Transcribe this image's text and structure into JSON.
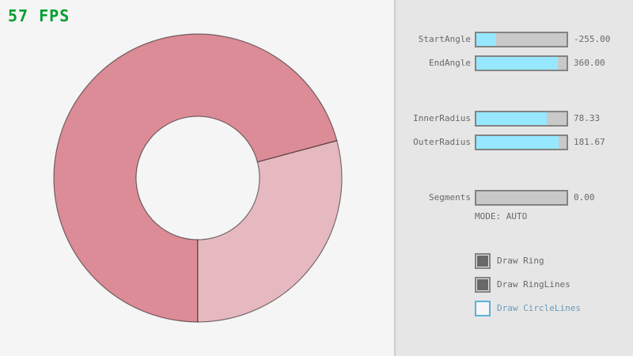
{
  "app": {
    "fps_label": "57 FPS"
  },
  "ring": {
    "start_angle": -255.0,
    "end_angle": 360.0,
    "inner_radius": 78.33,
    "outer_radius": 181.67,
    "segments": 0.0,
    "sector_dark_deg": [
      90,
      345
    ],
    "sector_light_deg": [
      345,
      450
    ]
  },
  "panel": {
    "sliders": [
      {
        "label": "StartAngle",
        "value": "-255.00",
        "fraction": 0.215
      },
      {
        "label": "EndAngle",
        "value": "360.00",
        "fraction": 0.9
      },
      {
        "label": "InnerRadius",
        "value": "78.33",
        "fraction": 0.783
      },
      {
        "label": "OuterRadius",
        "value": "181.67",
        "fraction": 0.908
      },
      {
        "label": "Segments",
        "value": "0.00",
        "fraction": 0.0
      }
    ],
    "mode_text": "MODE: AUTO",
    "checkboxes": [
      {
        "label": "Draw Ring",
        "checked": true,
        "focused": false
      },
      {
        "label": "Draw RingLines",
        "checked": true,
        "focused": false
      },
      {
        "label": "Draw CircleLines",
        "checked": false,
        "focused": true
      }
    ]
  },
  "colors": {
    "canvas_bg": "#F5F5F5",
    "panel_bg": "#E6E6E6",
    "divider": "#CDCDCD",
    "slider_border": "#838383",
    "slider_bg": "#C9C9C9",
    "slider_fill": "#97E8FF",
    "text": "#686868",
    "check": "#686868",
    "focus_border": "#5BB2D9",
    "focus_text": "#6C9BBC",
    "focus_bg": "#F6F6F6",
    "fps": "#009E2F",
    "ring_dark": "#DB8C96",
    "ring_light": "#E6B8BF",
    "ring_outline": "rgba(0,0,0,0.5)"
  }
}
